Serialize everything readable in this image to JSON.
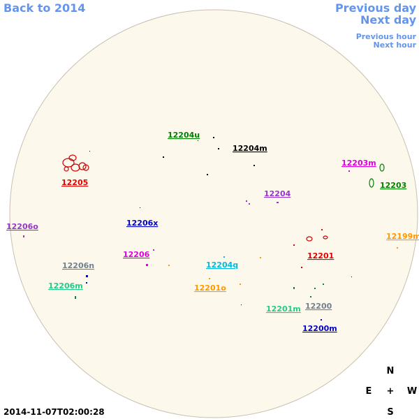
{
  "navigation": {
    "back": "Back to 2014",
    "previous_day": "Previous day",
    "next_day": "Next day",
    "previous_hour": "Previous hour",
    "next_hour": "Next hour"
  },
  "regions": [
    {
      "label": "12204u",
      "color": "#008000"
    },
    {
      "label": "12204m",
      "color": "#000000"
    },
    {
      "label": "12205",
      "color": "#e00000"
    },
    {
      "label": "12203m",
      "color": "#dd00dd"
    },
    {
      "label": "12203",
      "color": "#008000"
    },
    {
      "label": "12204",
      "color": "#9933cc"
    },
    {
      "label": "12206o",
      "color": "#9933cc"
    },
    {
      "label": "12206x",
      "color": "#0000cc"
    },
    {
      "label": "12199m",
      "color": "#ff9900"
    },
    {
      "label": "12206",
      "color": "#dd00dd"
    },
    {
      "label": "12201",
      "color": "#e00000"
    },
    {
      "label": "12206n",
      "color": "#708090"
    },
    {
      "label": "12204q",
      "color": "#00bbdd"
    },
    {
      "label": "12206m",
      "color": "#22cc88"
    },
    {
      "label": "12201o",
      "color": "#ff9900"
    },
    {
      "label": "12201m",
      "color": "#22cc88"
    },
    {
      "label": "12200",
      "color": "#708090"
    },
    {
      "label": "12200m",
      "color": "#0000cc"
    }
  ],
  "compass": {
    "north": "N",
    "east": "E",
    "center": "+",
    "west": "W",
    "south": "S"
  },
  "timestamp": "2014-11-07T02:00:28"
}
